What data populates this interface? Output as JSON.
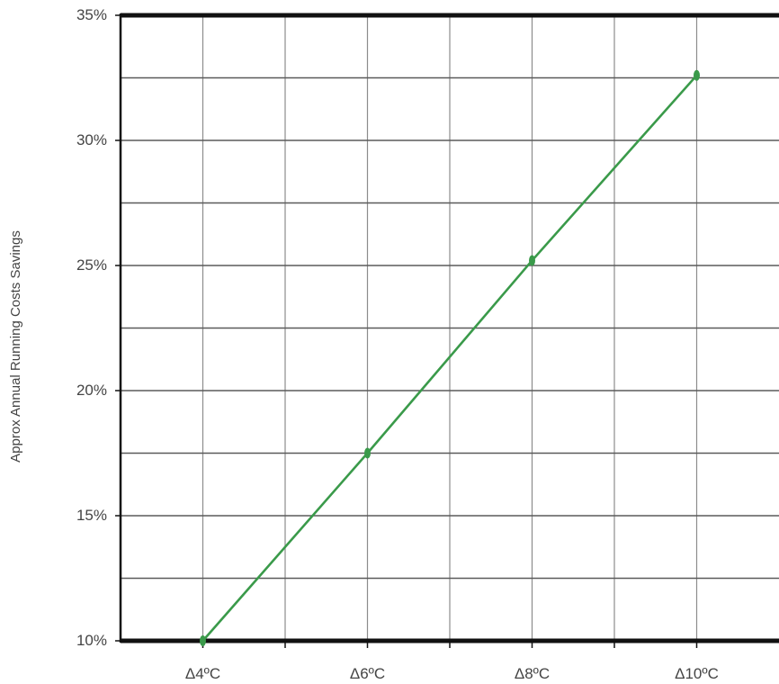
{
  "chart_data": {
    "type": "line",
    "title": "",
    "xlabel": "",
    "ylabel": "Approx Annual Running Costs Savings",
    "categories": [
      "Δ4ºC",
      "Δ6ºC",
      "Δ8ºC",
      "Δ10ºC"
    ],
    "x": [
      4,
      6,
      8,
      10
    ],
    "series": [
      {
        "values": [
          10,
          17.5,
          25.2,
          32.6
        ],
        "color": "#3a9a4a"
      }
    ],
    "yticks": [
      "10%",
      "15%",
      "20%",
      "25%",
      "30%",
      "35%"
    ],
    "ylim": [
      10,
      35
    ],
    "xlim": [
      3,
      11
    ],
    "grid": true,
    "y_minor_gridlines": [
      12.5,
      17.5,
      22.5,
      27.5,
      32.5
    ],
    "x_minor_gridlines": [
      5,
      7,
      9
    ],
    "legend": "none"
  }
}
